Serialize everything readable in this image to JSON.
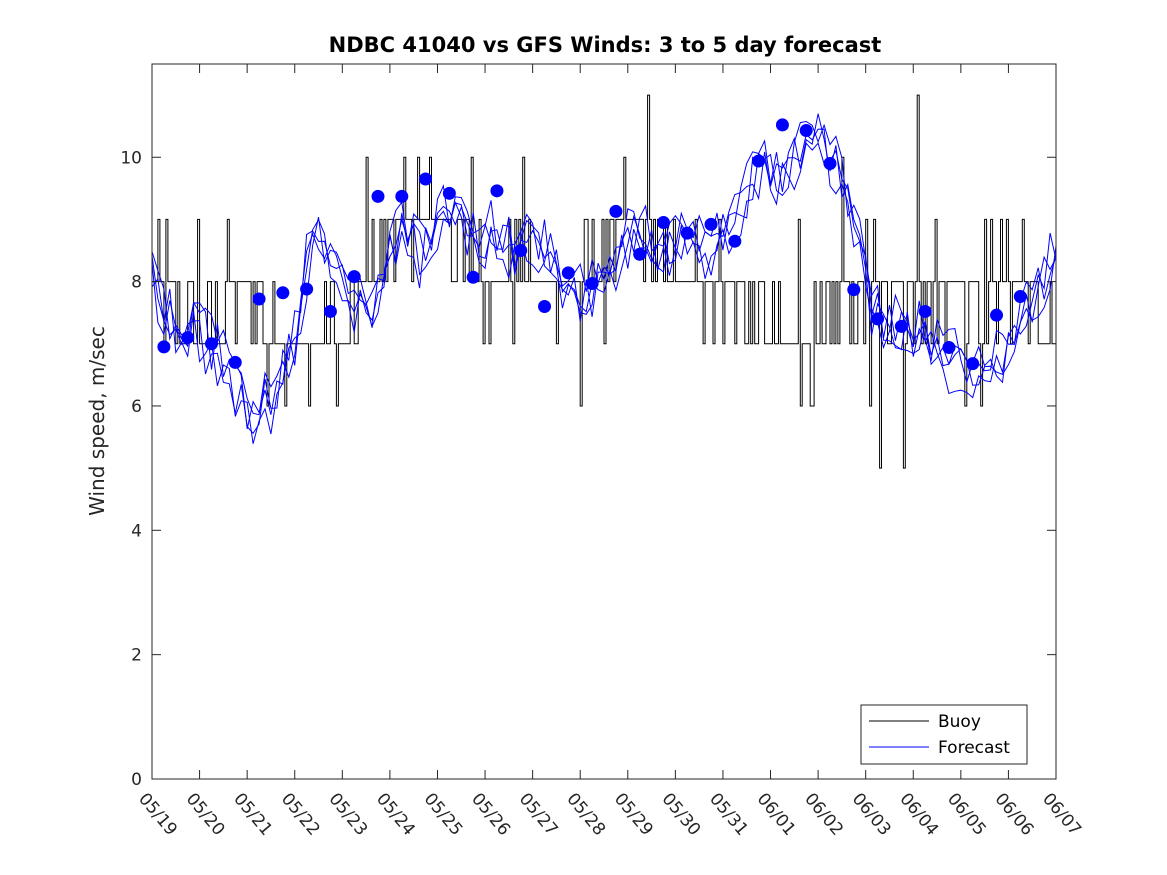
{
  "chart_data": {
    "type": "line",
    "title": "NDBC 41040 vs GFS Winds: 3 to 5 day forecast",
    "xlabel": "",
    "ylabel": "Wind speed, m/sec",
    "xlim": [
      "05/19",
      "06/07"
    ],
    "ylim": [
      0,
      11.5
    ],
    "yticks": [
      0,
      2,
      4,
      6,
      8,
      10
    ],
    "xtick_labels": [
      "05/19",
      "05/20",
      "05/21",
      "05/22",
      "05/23",
      "05/24",
      "05/25",
      "05/26",
      "05/27",
      "05/28",
      "05/29",
      "05/30",
      "05/31",
      "06/01",
      "06/02",
      "06/03",
      "06/04",
      "06/05",
      "06/06",
      "06/07"
    ],
    "grid": false,
    "legend": {
      "position": "bottom-right",
      "entries": [
        "Buoy",
        "Forecast"
      ]
    },
    "colors": {
      "buoy": "#000000",
      "forecast": "#0000ff",
      "markers": "#0000ff",
      "axes": "#262626"
    },
    "series": [
      {
        "name": "Buoy",
        "daily_values": [
          8,
          7,
          8,
          7,
          7,
          9,
          9,
          8,
          8,
          8,
          9,
          8,
          8,
          7,
          7,
          8,
          8,
          8,
          8,
          7,
          7
        ],
        "spikes": [
          {
            "day": 0.3,
            "value": 9
          },
          {
            "day": 0.95,
            "value": 9
          },
          {
            "day": 1.6,
            "value": 9
          },
          {
            "day": 2.4,
            "value": 6
          },
          {
            "day": 2.8,
            "value": 6
          },
          {
            "day": 3.5,
            "value": 7
          },
          {
            "day": 3.8,
            "value": 8
          },
          {
            "day": 4.5,
            "value": 10
          },
          {
            "day": 5.6,
            "value": 10
          },
          {
            "day": 6.7,
            "value": 10
          },
          {
            "day": 7.8,
            "value": 10
          },
          {
            "day": 9.0,
            "value": 6
          },
          {
            "day": 9.5,
            "value": 7
          },
          {
            "day": 10.4,
            "value": 11
          },
          {
            "day": 11.4,
            "value": 9
          },
          {
            "day": 12.9,
            "value": 7
          },
          {
            "day": 13.6,
            "value": 9
          },
          {
            "day": 14.5,
            "value": 10
          },
          {
            "day": 15.1,
            "value": 6
          },
          {
            "day": 15.3,
            "value": 5
          },
          {
            "day": 15.8,
            "value": 5
          },
          {
            "day": 16.1,
            "value": 11
          },
          {
            "day": 17.1,
            "value": 6
          },
          {
            "day": 17.4,
            "value": 6
          },
          {
            "day": 18.3,
            "value": 9
          }
        ]
      },
      {
        "name": "Forecast",
        "ensemble_mean": [
          [
            0.0,
            8.0
          ],
          [
            0.5,
            7.1
          ],
          [
            1.0,
            7.2
          ],
          [
            1.5,
            6.8
          ],
          [
            2.0,
            6.0
          ],
          [
            2.3,
            6.1
          ],
          [
            2.6,
            6.3
          ],
          [
            3.0,
            7.0
          ],
          [
            3.4,
            8.8
          ],
          [
            3.8,
            8.2
          ],
          [
            4.2,
            7.5
          ],
          [
            4.6,
            7.3
          ],
          [
            5.0,
            8.6
          ],
          [
            5.3,
            8.9
          ],
          [
            5.6,
            8.5
          ],
          [
            6.0,
            9.0
          ],
          [
            6.4,
            9.3
          ],
          [
            6.8,
            8.8
          ],
          [
            7.2,
            9.0
          ],
          [
            7.6,
            8.5
          ],
          [
            8.0,
            8.7
          ],
          [
            8.4,
            8.3
          ],
          [
            8.8,
            7.8
          ],
          [
            9.2,
            7.6
          ],
          [
            9.6,
            8.0
          ],
          [
            10.0,
            8.7
          ],
          [
            10.4,
            8.8
          ],
          [
            10.8,
            8.4
          ],
          [
            11.2,
            9.0
          ],
          [
            11.6,
            8.6
          ],
          [
            12.0,
            8.8
          ],
          [
            12.4,
            9.4
          ],
          [
            12.8,
            9.8
          ],
          [
            13.2,
            9.5
          ],
          [
            13.6,
            9.9
          ],
          [
            14.0,
            10.2
          ],
          [
            14.4,
            9.8
          ],
          [
            14.8,
            8.8
          ],
          [
            15.1,
            7.8
          ],
          [
            15.4,
            7.2
          ],
          [
            15.8,
            7.5
          ],
          [
            16.2,
            7.2
          ],
          [
            16.6,
            7.0
          ],
          [
            17.0,
            6.8
          ],
          [
            17.4,
            6.6
          ],
          [
            17.8,
            6.6
          ],
          [
            18.2,
            7.2
          ],
          [
            18.6,
            7.8
          ],
          [
            19.0,
            8.3
          ]
        ]
      }
    ],
    "forecast_markers": [
      [
        0.25,
        6.95
      ],
      [
        0.75,
        7.1
      ],
      [
        1.25,
        7.0
      ],
      [
        1.75,
        6.7
      ],
      [
        2.25,
        7.72
      ],
      [
        2.75,
        7.82
      ],
      [
        3.25,
        7.88
      ],
      [
        3.75,
        7.52
      ],
      [
        4.25,
        8.08
      ],
      [
        4.75,
        9.37
      ],
      [
        5.25,
        9.37
      ],
      [
        5.75,
        9.65
      ],
      [
        6.25,
        9.42
      ],
      [
        6.75,
        8.07
      ],
      [
        7.25,
        9.46
      ],
      [
        7.75,
        8.5
      ],
      [
        8.25,
        7.6
      ],
      [
        8.75,
        8.14
      ],
      [
        9.25,
        7.97
      ],
      [
        9.75,
        9.13
      ],
      [
        10.25,
        8.44
      ],
      [
        10.75,
        8.95
      ],
      [
        11.25,
        8.78
      ],
      [
        11.75,
        8.92
      ],
      [
        12.25,
        8.65
      ],
      [
        12.75,
        9.94
      ],
      [
        13.25,
        10.52
      ],
      [
        13.75,
        10.43
      ],
      [
        14.25,
        9.9
      ],
      [
        14.75,
        7.87
      ],
      [
        15.25,
        7.4
      ],
      [
        15.75,
        7.28
      ],
      [
        16.25,
        7.52
      ],
      [
        16.75,
        6.94
      ],
      [
        17.25,
        6.68
      ],
      [
        17.75,
        7.46
      ],
      [
        18.25,
        7.76
      ]
    ]
  }
}
